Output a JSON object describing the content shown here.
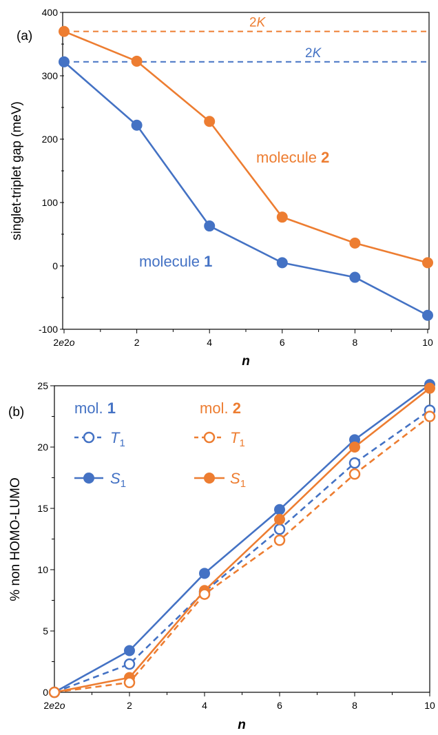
{
  "colors": {
    "mol1": "#4472C4",
    "mol2": "#ED7D31",
    "axis": "#000000"
  },
  "chart_data": [
    {
      "type": "line",
      "panel_label": "(a)",
      "xlabel": "n",
      "ylabel": "singlet-triplet gap (meV)",
      "categories": [
        "2e2o",
        "2",
        "4",
        "6",
        "8",
        "10"
      ],
      "ylim": [
        -100,
        400
      ],
      "yticks": [
        -100,
        0,
        100,
        200,
        300,
        400
      ],
      "series": [
        {
          "key": "mol1",
          "values": [
            322,
            222,
            63,
            5,
            -18,
            -78
          ]
        },
        {
          "key": "mol2",
          "values": [
            370,
            323,
            228,
            77,
            36,
            5
          ]
        }
      ],
      "reference_lines": [
        {
          "key": "mol2",
          "y": 370,
          "label": "2K"
        },
        {
          "key": "mol1",
          "y": 322,
          "label": "2K"
        }
      ],
      "annotations": [
        {
          "key": "mol2",
          "prefix": "molecule ",
          "bold": "2"
        },
        {
          "key": "mol1",
          "prefix": "molecule ",
          "bold": "1"
        }
      ]
    },
    {
      "type": "line",
      "panel_label": "(b)",
      "xlabel": "n",
      "ylabel": "% non HOMO-LUMO",
      "categories": [
        "2e2o",
        "2",
        "4",
        "6",
        "8",
        "10"
      ],
      "ylim": [
        0,
        25
      ],
      "yticks": [
        0,
        5,
        10,
        15,
        20,
        25
      ],
      "series": [
        {
          "key": "mol1",
          "state": "S1",
          "values": [
            0,
            3.4,
            9.7,
            14.9,
            20.6,
            25.1
          ]
        },
        {
          "key": "mol1",
          "state": "T1",
          "values": [
            0,
            2.3,
            8.2,
            13.3,
            18.7,
            23.0
          ]
        },
        {
          "key": "mol2",
          "state": "S1",
          "values": [
            0,
            1.2,
            8.3,
            14.1,
            20.0,
            24.8
          ]
        },
        {
          "key": "mol2",
          "state": "T1",
          "values": [
            0,
            0.8,
            8.0,
            12.4,
            17.8,
            22.5
          ]
        }
      ],
      "legend": {
        "mol1": {
          "prefix": "mol. ",
          "bold": "1"
        },
        "mol2": {
          "prefix": "mol. ",
          "bold": "2"
        },
        "T1": {
          "base": "T",
          "sub": "1"
        },
        "S1": {
          "base": "S",
          "sub": "1"
        }
      }
    }
  ]
}
